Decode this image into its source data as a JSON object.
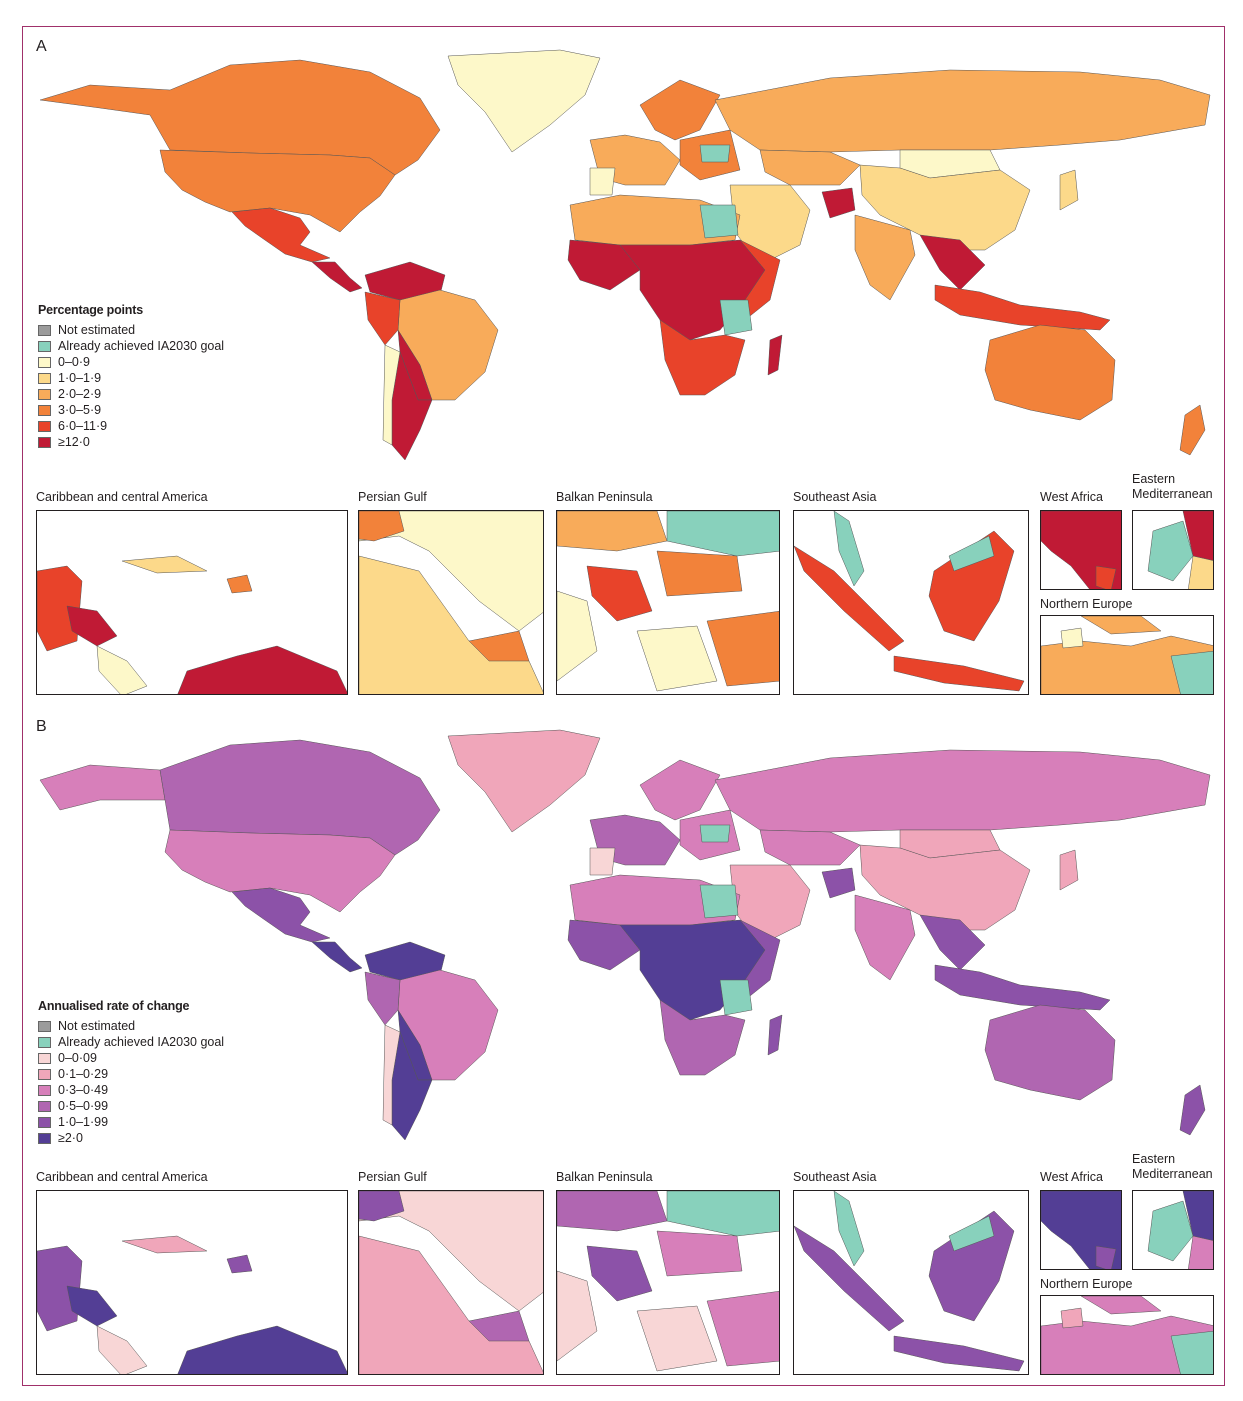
{
  "panels": [
    {
      "letter": "A",
      "legend_title": "Percentage points",
      "legend": [
        {
          "label": "Not estimated",
          "color": "#9b9b9b"
        },
        {
          "label": "Already achieved IA2030 goal",
          "color": "#88d1bc"
        },
        {
          "label": "0–0·9",
          "color": "#fdf8c9"
        },
        {
          "label": "1·0–1·9",
          "color": "#fcd98a"
        },
        {
          "label": "2·0–2·9",
          "color": "#f8ab5a"
        },
        {
          "label": "3·0–5·9",
          "color": "#f2823a"
        },
        {
          "label": "6·0–11·9",
          "color": "#e8432a"
        },
        {
          "label": "≥12·0",
          "color": "#c01a35"
        }
      ],
      "insets": [
        "Caribbean and central America",
        "Persian Gulf",
        "Balkan Peninsula",
        "Southeast Asia",
        "West Africa",
        "Eastern Mediterranean",
        "Northern Europe"
      ]
    },
    {
      "letter": "B",
      "legend_title": "Annualised rate of change",
      "legend": [
        {
          "label": "Not estimated",
          "color": "#9b9b9b"
        },
        {
          "label": "Already achieved IA2030 goal",
          "color": "#88d1bc"
        },
        {
          "label": "0–0·09",
          "color": "#f8d6d6"
        },
        {
          "label": "0·1–0·29",
          "color": "#f0a6ba"
        },
        {
          "label": "0·3–0·49",
          "color": "#d77fba"
        },
        {
          "label": "0·5–0·99",
          "color": "#b066b1"
        },
        {
          "label": "1·0–1·99",
          "color": "#8c52a8"
        },
        {
          "label": "≥2·0",
          "color": "#533e95"
        }
      ],
      "insets": [
        "Caribbean and central America",
        "Persian Gulf",
        "Balkan Peninsula",
        "Southeast Asia",
        "West Africa",
        "Eastern Mediterranean",
        "Northern Europe"
      ]
    }
  ]
}
